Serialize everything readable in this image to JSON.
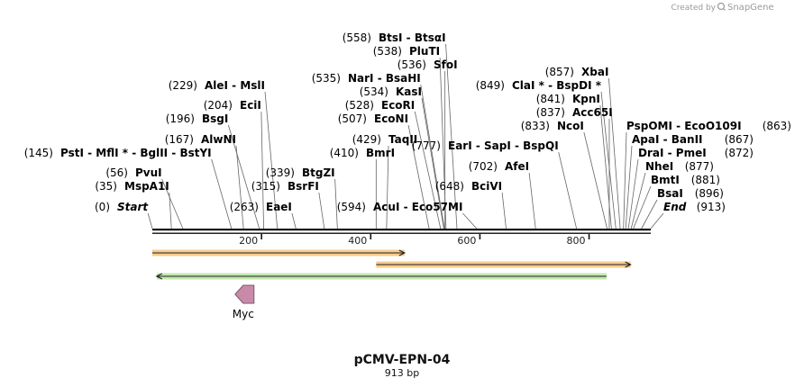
{
  "credit": "Created by",
  "brand": "SnapGene",
  "plasmid": {
    "name": "pCMV-EPN-04",
    "length_label": "913 bp",
    "length": 913
  },
  "ruler_ticks": [
    "200",
    "400",
    "600",
    "800"
  ],
  "sites": [
    {
      "text": "(0)",
      "name": "Start",
      "pos": 0,
      "italic": true
    },
    {
      "text": "(35)",
      "name": "MspA1I",
      "pos": 35
    },
    {
      "text": "(56)",
      "name": "PvuI",
      "pos": 56
    },
    {
      "text": "(145)",
      "name": "PstI - MflI * - BglII - BstYI",
      "pos": 145
    },
    {
      "text": "(167)",
      "name": "AlwNI",
      "pos": 167
    },
    {
      "text": "(196)",
      "name": "BsgI",
      "pos": 196
    },
    {
      "text": "(204)",
      "name": "EciI",
      "pos": 204
    },
    {
      "text": "(229)",
      "name": "AleI - MslI",
      "pos": 229
    },
    {
      "text": "(263)",
      "name": "EaeI",
      "pos": 263
    },
    {
      "text": "(315)",
      "name": "BsrFI",
      "pos": 315
    },
    {
      "text": "(339)",
      "name": "BtgZI",
      "pos": 339
    },
    {
      "text": "(410)",
      "name": "BmrI",
      "pos": 410
    },
    {
      "text": "(429)",
      "name": "TaqII",
      "pos": 429
    },
    {
      "text": "(594)",
      "name": "AcuI - Eco57MI",
      "pos": 594
    },
    {
      "text": "(507)",
      "name": "EcoNI",
      "pos": 507
    },
    {
      "text": "(528)",
      "name": "EcoRI",
      "pos": 528
    },
    {
      "text": "(534)",
      "name": "KasI",
      "pos": 534
    },
    {
      "text": "(535)",
      "name": "NarI - BsaHI",
      "pos": 535
    },
    {
      "text": "(536)",
      "name": "SfoI",
      "pos": 536
    },
    {
      "text": "(538)",
      "name": "PluTI",
      "pos": 538
    },
    {
      "text": "(558)",
      "name": "BtsI - BtsαI",
      "pos": 558
    },
    {
      "text": "(648)",
      "name": "BciVI",
      "pos": 648
    },
    {
      "text": "(702)",
      "name": "AfeI",
      "pos": 702
    },
    {
      "text": "(777)",
      "name": "EarI - SapI - BspQI",
      "pos": 777
    },
    {
      "text": "(849)",
      "name": "ClaI * - BspDI *",
      "pos": 849
    },
    {
      "text": "(833)",
      "name": "NcoI",
      "pos": 833
    },
    {
      "text": "(837)",
      "name": "Acc65I",
      "pos": 837
    },
    {
      "text": "(841)",
      "name": "KpnI",
      "pos": 841
    },
    {
      "text": "(857)",
      "name": "XbaI",
      "pos": 857
    },
    {
      "text": "(863)",
      "name": "PspOMI - EcoO109I",
      "pos": 863
    },
    {
      "text": "(867)",
      "name": "ApaI - BanII",
      "pos": 867
    },
    {
      "text": "(872)",
      "name": "DraI - PmeI",
      "pos": 872
    },
    {
      "text": "(877)",
      "name": "NheI",
      "pos": 877
    },
    {
      "text": "(881)",
      "name": "BmtI",
      "pos": 881
    },
    {
      "text": "(896)",
      "name": "BsaI",
      "pos": 896
    },
    {
      "text": "(913)",
      "name": "End",
      "pos": 913,
      "italic": true
    }
  ],
  "features": [
    {
      "name": "Myc",
      "start": 140,
      "end": 175,
      "direction": "reverse",
      "color": "#c98aaa"
    }
  ],
  "orf_arrows": [
    {
      "start": 0,
      "end": 462,
      "direction": "forward",
      "color": "#f0a030"
    },
    {
      "start": 410,
      "end": 876,
      "direction": "forward",
      "color": "#f0a030"
    },
    {
      "start": 8,
      "end": 832,
      "direction": "reverse",
      "color": "#8fd36a"
    }
  ]
}
